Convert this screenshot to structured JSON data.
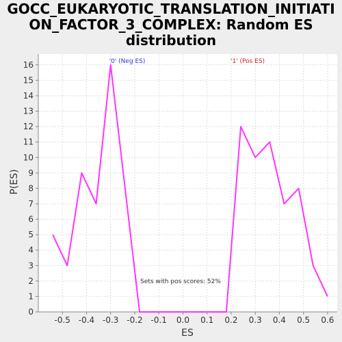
{
  "chart_data": {
    "type": "line",
    "title_line1": "GOCC_EUKARYOTIC_TRANSLATION_INITIATI",
    "title_line2": "ON_FACTOR_3_COMPLEX: Random ES",
    "title_line3": "distribution",
    "xlabel": "ES",
    "ylabel": "P(ES)",
    "xlim": [
      -0.6,
      0.64
    ],
    "ylim": [
      0,
      16.7
    ],
    "xticks": [
      -0.5,
      -0.4,
      -0.3,
      -0.2,
      -0.1,
      0.0,
      0.1,
      0.2,
      0.3,
      0.4,
      0.5,
      0.6
    ],
    "xtick_labels": [
      "-0.5",
      "-0.4",
      "-0.3",
      "-0.2",
      "-0.1",
      "0.0",
      "0.1",
      "0.2",
      "0.3",
      "0.4",
      "0.5",
      "0.6"
    ],
    "yticks": [
      0,
      1,
      2,
      3,
      4,
      5,
      6,
      7,
      8,
      9,
      10,
      11,
      12,
      13,
      14,
      15,
      16
    ],
    "grid": true,
    "series": [
      {
        "color": "#ff33ff",
        "x": [
          -0.54,
          -0.48,
          -0.42,
          -0.36,
          -0.3,
          -0.18,
          0.18,
          0.24,
          0.3,
          0.36,
          0.42,
          0.48,
          0.54,
          0.6
        ],
        "y": [
          5,
          3,
          9,
          7,
          16,
          0,
          0,
          12,
          10,
          11,
          7,
          8,
          3,
          1
        ]
      }
    ],
    "annotations": {
      "neg_label": "'0' (Neg ES)",
      "pos_label": "'1' (Pos ES)",
      "pos_scores": "Sets with pos scores: 52%",
      "neg_color": "#3333cc",
      "pos_color": "#cc2222"
    }
  }
}
